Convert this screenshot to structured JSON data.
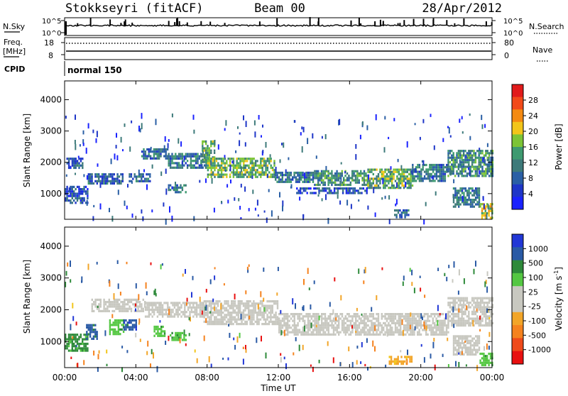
{
  "header": {
    "station": "Stokkseyri (fitACF)",
    "beam": "Beam 00",
    "date": "28/Apr/2012"
  },
  "top_panels": {
    "nsky_label": "N.Sky",
    "nsearch_label": "N.Search",
    "noise_tick_hi": "10^5",
    "noise_tick_lo": "10^0",
    "freq_label": "Freq.",
    "freq_unit": "[MHz]",
    "freq_tick_hi": "18",
    "freq_tick_lo": "8",
    "nave_label": "Nave",
    "nave_tick_hi": "80",
    "nave_tick_lo": "0",
    "cpid_label": "CPID",
    "cpid_value": "normal 150"
  },
  "colorbars": {
    "power": {
      "title": "Power [dB]",
      "ticks": [
        "28",
        "24",
        "20",
        "16",
        "12",
        "8",
        "4"
      ],
      "colors": [
        "#e11b1b",
        "#f24a1a",
        "#f48a12",
        "#f2c51a",
        "#7cc436",
        "#3e9a70",
        "#3d7a7a",
        "#2a5fa5",
        "#1e36c8",
        "#1a22ff"
      ]
    },
    "velocity": {
      "title": "Velocity [m s",
      "title_sup": "-1",
      "title_end": "]",
      "ticks": [
        "1000",
        "500",
        "100",
        "25",
        "-25",
        "-100",
        "-500",
        "-1000"
      ],
      "colors": [
        "#2137d6",
        "#2a5aa5",
        "#2e8a3a",
        "#54c742",
        "#c8c8c0",
        "#c8c8c0",
        "#f2a528",
        "#f5821e",
        "#ef4a1a",
        "#e81010"
      ]
    }
  },
  "chart_data": [
    {
      "type": "heatmap",
      "title": "Stokkseyri (fitACF)",
      "subtitle": "Beam 00",
      "quantity": "Power",
      "ylabel": "Slant Range [km]",
      "yticks": [
        "1000",
        "2000",
        "3000",
        "4000"
      ],
      "ylim": [
        180,
        4600
      ],
      "xlim": [
        0,
        24
      ],
      "colorbar": "Power [dB]",
      "clim": [
        0,
        30
      ],
      "bands": [
        {
          "t0": 0.0,
          "t1": 1.3,
          "r0": 700,
          "r1": 1250,
          "value": 6
        },
        {
          "t0": 0.1,
          "t1": 1.0,
          "r0": 1850,
          "r1": 2150,
          "value": 8
        },
        {
          "t0": 1.3,
          "t1": 3.3,
          "r0": 1350,
          "r1": 1650,
          "value": 8
        },
        {
          "t0": 3.6,
          "t1": 4.8,
          "r0": 1400,
          "r1": 1650,
          "value": 8
        },
        {
          "t0": 5.8,
          "t1": 6.8,
          "r0": 1050,
          "r1": 1300,
          "value": 10
        },
        {
          "t0": 4.3,
          "t1": 5.8,
          "r0": 2100,
          "r1": 2450,
          "value": 8
        },
        {
          "t0": 5.8,
          "t1": 8.0,
          "r0": 1800,
          "r1": 2300,
          "value": 10
        },
        {
          "t0": 7.7,
          "t1": 8.4,
          "r0": 2000,
          "r1": 2700,
          "value": 14
        },
        {
          "t0": 8.0,
          "t1": 11.8,
          "r0": 1550,
          "r1": 2150,
          "value": 15
        },
        {
          "t0": 11.8,
          "t1": 14.0,
          "r0": 1350,
          "r1": 1700,
          "value": 9
        },
        {
          "t0": 14.0,
          "t1": 17.0,
          "r0": 1250,
          "r1": 1750,
          "value": 12
        },
        {
          "t0": 17.0,
          "t1": 19.5,
          "r0": 1200,
          "r1": 1800,
          "value": 14
        },
        {
          "t0": 19.5,
          "t1": 21.5,
          "r0": 1400,
          "r1": 1950,
          "value": 10
        },
        {
          "t0": 21.5,
          "t1": 24.0,
          "r0": 1600,
          "r1": 2400,
          "value": 12
        },
        {
          "t0": 21.8,
          "t1": 23.3,
          "r0": 550,
          "r1": 1200,
          "value": 10
        },
        {
          "t0": 23.3,
          "t1": 24.0,
          "r0": 250,
          "r1": 700,
          "value": 18
        },
        {
          "t0": 13.0,
          "t1": 17.0,
          "r0": 1050,
          "r1": 1200,
          "value": 6
        },
        {
          "t0": 18.5,
          "t1": 19.3,
          "r0": 220,
          "r1": 500,
          "value": 8
        }
      ]
    },
    {
      "type": "heatmap",
      "quantity": "Velocity",
      "ylabel": "Slant Range [km]",
      "xlabel": "Time UT",
      "xticks": [
        "00:00",
        "04:00",
        "08:00",
        "12:00",
        "16:00",
        "20:00",
        "00:00"
      ],
      "yticks": [
        "1000",
        "2000",
        "3000",
        "4000"
      ],
      "ylim": [
        180,
        4600
      ],
      "xlim": [
        0,
        24
      ],
      "colorbar": "Velocity [m s-1]",
      "bands": [
        {
          "t0": 0.0,
          "t1": 1.3,
          "r0": 700,
          "r1": 1250,
          "value": 150
        },
        {
          "t0": 1.2,
          "t1": 1.8,
          "r0": 1100,
          "r1": 1550,
          "value": 600
        },
        {
          "t0": 2.5,
          "t1": 3.3,
          "r0": 1250,
          "r1": 1700,
          "value": 80
        },
        {
          "t0": 3.3,
          "t1": 4.0,
          "r0": 1350,
          "r1": 1700,
          "value": 800
        },
        {
          "t0": 5.0,
          "t1": 5.6,
          "r0": 1150,
          "r1": 1500,
          "value": 80
        },
        {
          "t0": 5.9,
          "t1": 6.8,
          "r0": 1050,
          "r1": 1300,
          "value": 80
        },
        {
          "t0": 1.5,
          "t1": 4.5,
          "r0": 1950,
          "r1": 2350,
          "value": 0
        },
        {
          "t0": 4.5,
          "t1": 7.8,
          "r0": 1800,
          "r1": 2250,
          "value": 0
        },
        {
          "t0": 7.8,
          "t1": 12.0,
          "r0": 1550,
          "r1": 2300,
          "value": 0
        },
        {
          "t0": 12.0,
          "t1": 17.0,
          "r0": 1200,
          "r1": 1900,
          "value": 0
        },
        {
          "t0": 17.0,
          "t1": 21.5,
          "r0": 1250,
          "r1": 1900,
          "value": 0
        },
        {
          "t0": 21.5,
          "t1": 24.0,
          "r0": 1500,
          "r1": 2400,
          "value": 0
        },
        {
          "t0": 18.2,
          "t1": 19.5,
          "r0": 300,
          "r1": 550,
          "value": -250
        },
        {
          "t0": 21.8,
          "t1": 23.3,
          "r0": 600,
          "r1": 1200,
          "value": 0
        },
        {
          "t0": 23.3,
          "t1": 24.0,
          "r0": 250,
          "r1": 650,
          "value": 80
        }
      ]
    }
  ]
}
